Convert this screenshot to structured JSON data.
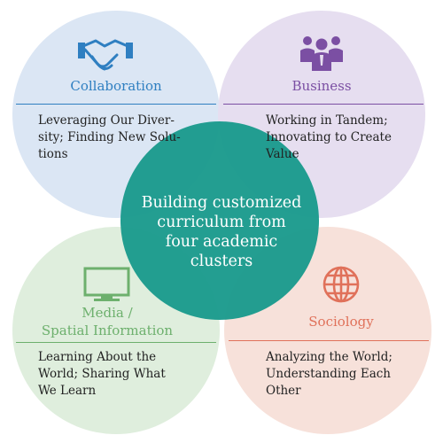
{
  "center": {
    "lines": [
      "Building customized",
      "curriculum from",
      "four academic clusters"
    ],
    "color": "#1a9a8c"
  },
  "clusters": [
    {
      "id": "collaboration",
      "title": "Collaboration",
      "description_lines": [
        "Leveraging Our Diver-",
        "sity; Finding New Solu-",
        "tions"
      ],
      "icon": "handshake-icon",
      "color": "#2f7fc1",
      "fill": "#dbe6f4"
    },
    {
      "id": "business",
      "title": "Business",
      "description_lines": [
        "Working in Tandem;",
        "Innovating to Create",
        "Value"
      ],
      "icon": "people-group-icon",
      "color": "#7b4fa3",
      "fill": "#e6def0"
    },
    {
      "id": "media",
      "title_lines": [
        "Media /",
        "Spatial Information"
      ],
      "description_lines": [
        "Learning About the",
        "World; Sharing What",
        "We Learn"
      ],
      "icon": "monitor-icon",
      "color": "#6db06d",
      "fill": "#dfeedd"
    },
    {
      "id": "sociology",
      "title": "Sociology",
      "description_lines": [
        "Analyzing the World;",
        "Understanding Each",
        "Other"
      ],
      "icon": "globe-icon",
      "color": "#e0715a",
      "fill": "#f7e1da"
    }
  ]
}
